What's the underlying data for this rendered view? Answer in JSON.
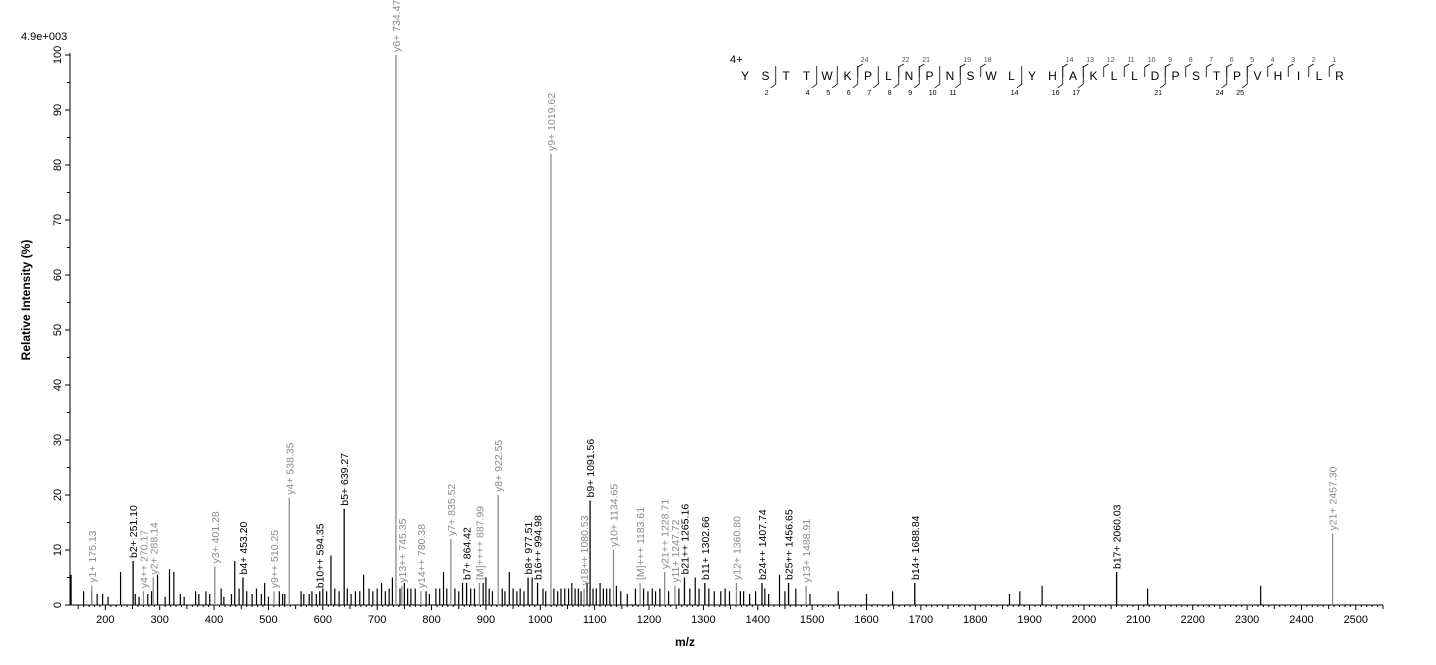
{
  "chart_data": {
    "type": "bar",
    "scale_label": "4.9e+003",
    "xlabel": "m/z",
    "ylabel": "Relative   Intensity (%)",
    "xlim": [
      135,
      2550
    ],
    "ylim": [
      0,
      100
    ],
    "x_ticks": [
      200,
      300,
      400,
      500,
      600,
      700,
      800,
      900,
      1000,
      1100,
      1200,
      1300,
      1400,
      1500,
      1600,
      1700,
      1800,
      1900,
      2000,
      2100,
      2200,
      2300,
      2400,
      2500
    ],
    "y_ticks": [
      0,
      10,
      20,
      30,
      40,
      50,
      60,
      70,
      80,
      90,
      100
    ],
    "colors": {
      "y_ion": "#8c8c8c",
      "b_ion": "#000000",
      "other": "#000000"
    },
    "annotated_peaks": [
      {
        "mz": 175.13,
        "intensity": 3.5,
        "label": "y1+ 175.13",
        "ion": "y"
      },
      {
        "mz": 251.1,
        "intensity": 8,
        "label": "b2+ 251.10",
        "ion": "b"
      },
      {
        "mz": 270.17,
        "intensity": 2.5,
        "label": "y4++ 270.17",
        "ion": "y"
      },
      {
        "mz": 288.14,
        "intensity": 5,
        "label": "y2+ 288.14",
        "ion": "y"
      },
      {
        "mz": 401.28,
        "intensity": 7,
        "label": "y3+ 401.28",
        "ion": "y"
      },
      {
        "mz": 453.2,
        "intensity": 5,
        "label": "b4+ 453.20",
        "ion": "b"
      },
      {
        "mz": 510.25,
        "intensity": 2.5,
        "label": "y9++ 510.25",
        "ion": "y"
      },
      {
        "mz": 538.35,
        "intensity": 19.5,
        "label": "y4+ 538.35",
        "ion": "y"
      },
      {
        "mz": 594.35,
        "intensity": 2.5,
        "label": "b10++ 594.35",
        "ion": "b"
      },
      {
        "mz": 639.27,
        "intensity": 17.5,
        "label": "b5+ 639.27",
        "ion": "b"
      },
      {
        "mz": 734.47,
        "intensity": 100,
        "label": "y6+ 734.47",
        "ion": "y"
      },
      {
        "mz": 745.35,
        "intensity": 3.5,
        "label": "y13++ 745.35",
        "ion": "y"
      },
      {
        "mz": 780.38,
        "intensity": 2.5,
        "label": "y14++ 780.38",
        "ion": "y"
      },
      {
        "mz": 835.52,
        "intensity": 12,
        "label": "y7+ 835.52",
        "ion": "y"
      },
      {
        "mz": 864.42,
        "intensity": 4,
        "label": "b7+ 864.42",
        "ion": "b"
      },
      {
        "mz": 887.99,
        "intensity": 4,
        "label": "[M]++++ 887.99",
        "ion": "y"
      },
      {
        "mz": 922.55,
        "intensity": 20,
        "label": "y8+ 922.55",
        "ion": "y"
      },
      {
        "mz": 977.51,
        "intensity": 5,
        "label": "b8+ 977.51",
        "ion": "b"
      },
      {
        "mz": 994.98,
        "intensity": 4,
        "label": "b16++ 994.98",
        "ion": "b"
      },
      {
        "mz": 1019.62,
        "intensity": 82,
        "label": "y9+ 1019.62",
        "ion": "y"
      },
      {
        "mz": 1080.53,
        "intensity": 3,
        "label": "y18++ 1080.53",
        "ion": "y"
      },
      {
        "mz": 1091.56,
        "intensity": 19,
        "label": "b9+ 1091.56",
        "ion": "b"
      },
      {
        "mz": 1134.65,
        "intensity": 10,
        "label": "y10+ 1134.65",
        "ion": "y"
      },
      {
        "mz": 1183.61,
        "intensity": 4,
        "label": "[M]+++ 1183.61",
        "ion": "y"
      },
      {
        "mz": 1228.71,
        "intensity": 6,
        "label": "y21++ 1228.71",
        "ion": "y"
      },
      {
        "mz": 1247.72,
        "intensity": 3.5,
        "label": "y11+ 1247.72",
        "ion": "y"
      },
      {
        "mz": 1265.16,
        "intensity": 5,
        "label": "b21++ 1265.16",
        "ion": "b"
      },
      {
        "mz": 1302.66,
        "intensity": 4,
        "label": "b11+ 1302.66",
        "ion": "b"
      },
      {
        "mz": 1360.8,
        "intensity": 4,
        "label": "y12+ 1360.80",
        "ion": "y"
      },
      {
        "mz": 1407.74,
        "intensity": 4,
        "label": "b24++ 1407.74",
        "ion": "b"
      },
      {
        "mz": 1456.65,
        "intensity": 4,
        "label": "b25++ 1456.65",
        "ion": "b"
      },
      {
        "mz": 1488.91,
        "intensity": 3.5,
        "label": "y13+ 1488.91",
        "ion": "y"
      },
      {
        "mz": 1688.84,
        "intensity": 4,
        "label": "b14+ 1688.84",
        "ion": "b"
      },
      {
        "mz": 2060.03,
        "intensity": 6,
        "label": "b17+ 2060.03",
        "ion": "b"
      },
      {
        "mz": 2457.3,
        "intensity": 13,
        "label": "y21+ 2457.30",
        "ion": "y"
      }
    ],
    "other_peaks": [
      [
        137,
        5.5
      ],
      [
        160,
        2.5
      ],
      [
        175,
        2.5
      ],
      [
        185,
        2
      ],
      [
        195,
        2
      ],
      [
        205,
        1.5
      ],
      [
        228,
        6
      ],
      [
        255,
        2
      ],
      [
        262,
        1.5
      ],
      [
        278,
        2
      ],
      [
        285,
        2.5
      ],
      [
        296,
        5.5
      ],
      [
        310,
        1.5
      ],
      [
        318,
        6.5
      ],
      [
        326,
        6
      ],
      [
        338,
        2
      ],
      [
        345,
        1.5
      ],
      [
        366,
        2.5
      ],
      [
        372,
        2
      ],
      [
        385,
        2.5
      ],
      [
        392,
        2
      ],
      [
        413,
        3
      ],
      [
        418,
        1.5
      ],
      [
        432,
        2
      ],
      [
        438,
        8
      ],
      [
        446,
        3
      ],
      [
        460,
        2.5
      ],
      [
        470,
        2
      ],
      [
        478,
        3
      ],
      [
        487,
        2
      ],
      [
        493,
        4
      ],
      [
        500,
        1.5
      ],
      [
        520,
        2.5
      ],
      [
        526,
        2
      ],
      [
        530,
        2
      ],
      [
        560,
        2.5
      ],
      [
        565,
        2
      ],
      [
        575,
        2
      ],
      [
        580,
        2.5
      ],
      [
        588,
        2
      ],
      [
        600,
        3
      ],
      [
        607,
        2.5
      ],
      [
        615,
        9
      ],
      [
        622,
        3
      ],
      [
        630,
        2.5
      ],
      [
        645,
        3
      ],
      [
        652,
        2
      ],
      [
        660,
        2.5
      ],
      [
        668,
        2.5
      ],
      [
        675,
        5.5
      ],
      [
        685,
        3
      ],
      [
        692,
        2.5
      ],
      [
        700,
        3
      ],
      [
        708,
        4
      ],
      [
        715,
        2.5
      ],
      [
        722,
        3
      ],
      [
        728,
        5
      ],
      [
        742,
        3
      ],
      [
        750,
        4
      ],
      [
        756,
        3
      ],
      [
        762,
        3
      ],
      [
        770,
        3
      ],
      [
        790,
        2.5
      ],
      [
        796,
        2
      ],
      [
        808,
        3
      ],
      [
        815,
        3
      ],
      [
        822,
        6
      ],
      [
        828,
        3
      ],
      [
        843,
        3
      ],
      [
        850,
        2.5
      ],
      [
        857,
        4
      ],
      [
        872,
        3
      ],
      [
        879,
        3
      ],
      [
        895,
        4
      ],
      [
        900,
        5
      ],
      [
        906,
        3
      ],
      [
        912,
        2.5
      ],
      [
        930,
        3
      ],
      [
        935,
        2.5
      ],
      [
        943,
        6
      ],
      [
        950,
        3
      ],
      [
        957,
        2.5
      ],
      [
        963,
        3
      ],
      [
        970,
        2.5
      ],
      [
        985,
        5
      ],
      [
        1005,
        3
      ],
      [
        1010,
        2.5
      ],
      [
        1025,
        3
      ],
      [
        1032,
        2.5
      ],
      [
        1038,
        3
      ],
      [
        1045,
        3
      ],
      [
        1052,
        3
      ],
      [
        1058,
        4
      ],
      [
        1064,
        3
      ],
      [
        1070,
        3
      ],
      [
        1075,
        2.5
      ],
      [
        1086,
        4
      ],
      [
        1097,
        3
      ],
      [
        1103,
        3
      ],
      [
        1110,
        4
      ],
      [
        1116,
        3
      ],
      [
        1122,
        3
      ],
      [
        1128,
        3
      ],
      [
        1140,
        3.5
      ],
      [
        1148,
        2.5
      ],
      [
        1160,
        2
      ],
      [
        1175,
        3
      ],
      [
        1190,
        3
      ],
      [
        1198,
        2.5
      ],
      [
        1206,
        3
      ],
      [
        1212,
        2.5
      ],
      [
        1220,
        3
      ],
      [
        1236,
        2.5
      ],
      [
        1255,
        3
      ],
      [
        1275,
        3
      ],
      [
        1285,
        5
      ],
      [
        1292,
        3
      ],
      [
        1310,
        3
      ],
      [
        1320,
        2.5
      ],
      [
        1332,
        2.5
      ],
      [
        1340,
        3
      ],
      [
        1348,
        2.5
      ],
      [
        1368,
        2.5
      ],
      [
        1374,
        2.5
      ],
      [
        1385,
        2
      ],
      [
        1396,
        2.5
      ],
      [
        1413,
        3
      ],
      [
        1420,
        2
      ],
      [
        1440,
        5.5
      ],
      [
        1450,
        2.5
      ],
      [
        1470,
        3
      ],
      [
        1496,
        2
      ],
      [
        1548,
        2.5
      ],
      [
        1600,
        2
      ],
      [
        1648,
        2.5
      ],
      [
        1863,
        2
      ],
      [
        1882,
        2.5
      ],
      [
        1923,
        3.5
      ],
      [
        2117,
        3
      ],
      [
        2325,
        3.5
      ]
    ],
    "peptide": {
      "charge": "4+",
      "residues": [
        "Y",
        "S",
        "T",
        "T",
        "W",
        "K",
        "P",
        "L",
        "N",
        "P",
        "N",
        "S",
        "W",
        "L",
        "Y",
        "H",
        "A",
        "K",
        "L",
        "L",
        "D",
        "P",
        "S",
        "T",
        "P",
        "V",
        "H",
        "I",
        "L",
        "R"
      ],
      "y_ions": [
        "24",
        "22",
        "21",
        "19",
        "18",
        "14",
        "13",
        "12",
        "11",
        "10",
        "9",
        "8",
        "7",
        "6",
        "5",
        "4",
        "3",
        "2",
        "1"
      ],
      "b_ions": [
        "2",
        "4",
        "5",
        "6",
        "7",
        "8",
        "9",
        "10",
        "11",
        "14",
        "16",
        "17",
        "21",
        "24",
        "25"
      ]
    }
  }
}
